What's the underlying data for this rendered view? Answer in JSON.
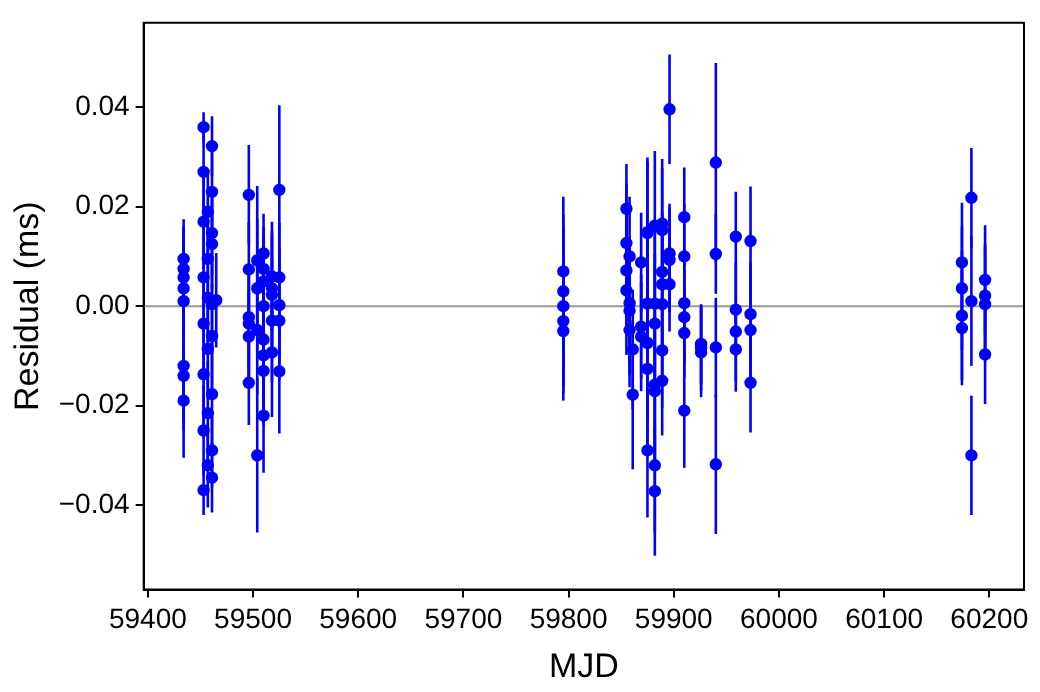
{
  "chart_data": {
    "type": "scatter",
    "xlabel": "MJD",
    "ylabel": "Residual (ms)",
    "marker": "circle",
    "grid": false,
    "legend": false,
    "xlim": [
      59396,
      60233
    ],
    "xticks": [
      59400,
      59500,
      59600,
      59700,
      59800,
      59900,
      60000,
      60100,
      60200
    ],
    "ylim": [
      -0.057,
      0.057
    ],
    "yticks": [
      {
        "value": -0.04,
        "label": "−0.04"
      },
      {
        "value": -0.02,
        "label": "−0.02"
      },
      {
        "value": 0,
        "label": "0.00"
      },
      {
        "value": 0.02,
        "label": "0.02"
      },
      {
        "value": 0.04,
        "label": "0.04"
      }
    ],
    "ref_lines": [
      {
        "axis": "y",
        "value": 0,
        "color": "#999999"
      }
    ],
    "series": [
      {
        "color": "#0000ff",
        "x": [
          59434,
          59434,
          59434,
          59434,
          59434,
          59434,
          59434,
          59434,
          59453,
          59453,
          59453,
          59453,
          59453,
          59453,
          59453,
          59453,
          59457,
          59457,
          59457,
          59457,
          59457,
          59457,
          59461,
          59461,
          59461,
          59461,
          59465,
          59461,
          59461,
          59461,
          59461,
          59461,
          59496,
          59496,
          59496,
          59496,
          59496,
          59496,
          59504,
          59504,
          59504,
          59504,
          59510,
          59510,
          59510,
          59510,
          59510,
          59510,
          59510,
          59510,
          59518,
          59518,
          59518,
          59518,
          59518,
          59525,
          59525,
          59525,
          59525,
          59525,
          59795,
          59795,
          59795,
          59795,
          59795,
          59855,
          59855,
          59855,
          59855,
          59858,
          59858,
          59858,
          59858,
          59861,
          59861,
          59869,
          59869,
          59869,
          59875,
          59875,
          59875,
          59875,
          59875,
          59875,
          59882,
          59882,
          59882,
          59882,
          59882,
          59882,
          59882,
          59889,
          59889,
          59889,
          59889,
          59889,
          59889,
          59889,
          59896,
          59896,
          59896,
          59896,
          59910,
          59910,
          59910,
          59910,
          59910,
          59910,
          59926,
          59926,
          59926,
          59940,
          59940,
          59940,
          59940,
          59959,
          59959,
          59959,
          59959,
          59973,
          59973,
          59973,
          59973,
          60174,
          60174,
          60174,
          60174,
          60183,
          60183,
          60183,
          60196,
          60196,
          60196,
          60196
        ],
        "values": [
          0.0095,
          0.0075,
          0.0058,
          0.0036,
          0.001,
          -0.012,
          -0.014,
          -0.019,
          0.036,
          0.027,
          0.017,
          0.0058,
          -0.0035,
          -0.0137,
          -0.025,
          -0.037,
          0.019,
          0.0095,
          0.0017,
          -0.0086,
          -0.0215,
          -0.032,
          0.0322,
          0.023,
          0.0147,
          0.0125,
          0.0012,
          0.0004,
          -0.006,
          -0.0177,
          -0.029,
          -0.0345,
          0.0224,
          0.0074,
          -0.0022,
          -0.0035,
          -0.0061,
          -0.0154,
          0.0092,
          0.0036,
          -0.0048,
          -0.03,
          0.0106,
          0.0075,
          0.005,
          0,
          -0.0067,
          -0.0099,
          -0.013,
          -0.022,
          0.006,
          0.0036,
          0.0023,
          -0.0029,
          -0.0093,
          0.0234,
          0.0058,
          0.0002,
          -0.0029,
          -0.0131,
          0.007,
          0.003,
          0,
          -0.003,
          -0.005,
          0.0196,
          0.0127,
          0.0072,
          0.0032,
          0.01,
          0.0006,
          -0.0009,
          -0.0048,
          -0.0087,
          -0.0178,
          0.0088,
          -0.0041,
          -0.0061,
          0.0149,
          0.0147,
          0.0005,
          -0.0074,
          -0.0126,
          -0.029,
          0.0162,
          0.0005,
          -0.0035,
          -0.0158,
          -0.0171,
          -0.032,
          -0.0372,
          0.0166,
          0.0153,
          0.0069,
          0.0044,
          0.0004,
          -0.0089,
          -0.015,
          0.0396,
          0.0106,
          0.0093,
          0.0044,
          0.0179,
          0.01,
          0.0006,
          -0.0022,
          -0.0054,
          -0.021,
          -0.0076,
          -0.0084,
          -0.0093,
          0.0289,
          0.0105,
          -0.0083,
          -0.0318,
          0.014,
          -0.0007,
          -0.0051,
          -0.0087,
          0.0131,
          -0.0016,
          -0.0048,
          -0.0154,
          0.0088,
          0.0036,
          -0.0019,
          -0.0044,
          0.0218,
          0.001,
          -0.03,
          0.0053,
          0.0021,
          0.0004,
          -0.0097
        ],
        "errors": [
          0.008,
          0.0085,
          0.009,
          0.0095,
          0.01,
          0.0105,
          0.011,
          0.0115,
          0.003,
          0.008,
          0.0095,
          0.01,
          0.0105,
          0.011,
          0.009,
          0.005,
          0.008,
          0.009,
          0.0095,
          0.01,
          0.0105,
          0.0085,
          0.006,
          0.008,
          0.0085,
          0.009,
          0.0095,
          0.01,
          0.0105,
          0.011,
          0.0075,
          0.007,
          0.01,
          0.0095,
          0.0105,
          0.011,
          0.009,
          0.0085,
          0.015,
          0.014,
          0.013,
          0.0155,
          0.008,
          0.0085,
          0.009,
          0.0095,
          0.01,
          0.0105,
          0.011,
          0.0115,
          0.011,
          0.0115,
          0.012,
          0.0125,
          0.013,
          0.017,
          0.011,
          0.0115,
          0.012,
          0.0125,
          0.015,
          0.0155,
          0.016,
          0.0145,
          0.014,
          0.009,
          0.012,
          0.0125,
          0.013,
          0.012,
          0.0125,
          0.013,
          0.0115,
          0.012,
          0.015,
          0.01,
          0.0105,
          0.011,
          0.015,
          0.0145,
          0.014,
          0.0155,
          0.016,
          0.0135,
          0.015,
          0.0145,
          0.014,
          0.0155,
          0.016,
          0.0135,
          0.013,
          0.013,
          0.0125,
          0.012,
          0.0135,
          0.014,
          0.0115,
          0.011,
          0.011,
          0.01,
          0.0105,
          0.0095,
          0.01,
          0.0105,
          0.011,
          0.0095,
          0.009,
          0.0115,
          0.008,
          0.0085,
          0.009,
          0.02,
          0.008,
          0.01,
          0.014,
          0.009,
          0.0095,
          0.01,
          0.0085,
          0.011,
          0.0105,
          0.0115,
          0.01,
          0.012,
          0.0125,
          0.013,
          0.0115,
          0.01,
          0.013,
          0.012,
          0.011,
          0.0105,
          0.0115,
          0.01
        ]
      }
    ]
  }
}
